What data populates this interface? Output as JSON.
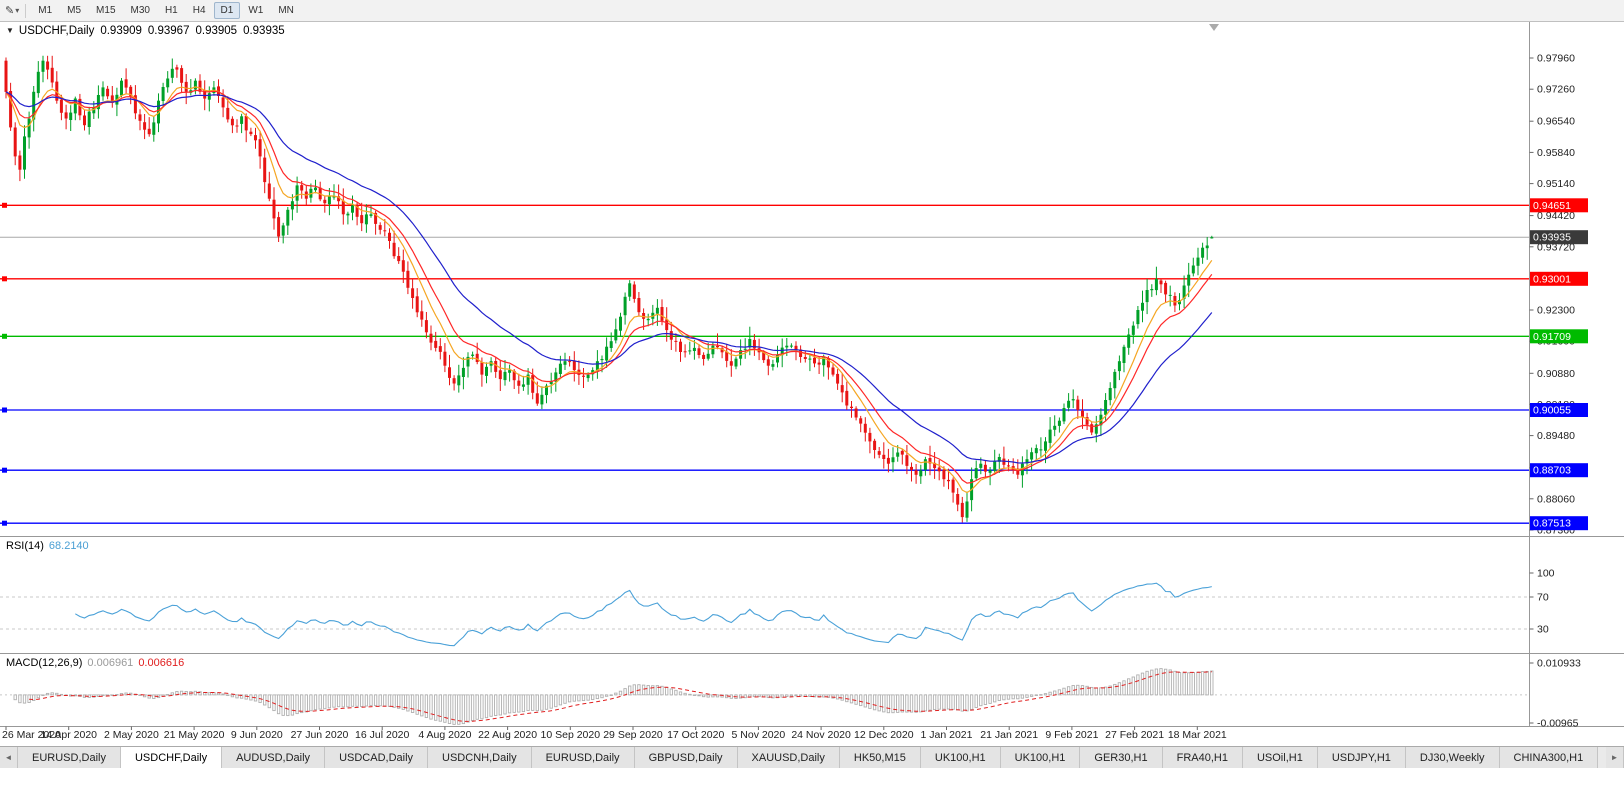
{
  "toolbar": {
    "draw_icon": "✎",
    "caret_icon": "▾",
    "timeframes": [
      "M1",
      "M5",
      "M15",
      "M30",
      "H1",
      "H4",
      "D1",
      "W1",
      "MN"
    ],
    "active_timeframe": "D1"
  },
  "chart_header": {
    "menu_icon": "▼",
    "symbol": "USDCHF,Daily",
    "open": "0.93909",
    "high": "0.93967",
    "low": "0.93905",
    "close": "0.93935"
  },
  "indicators": {
    "rsi": {
      "name": "RSI(14)",
      "value": "68.2140",
      "period": 14,
      "levels": [
        30,
        70
      ],
      "axis_labels": [
        {
          "text": "100",
          "value": 100
        },
        {
          "text": "70",
          "value": 70
        },
        {
          "text": "30",
          "value": 30
        }
      ],
      "color": "#4aa1d8"
    },
    "macd": {
      "name": "MACD(12,26,9)",
      "main_value": "0.006961",
      "signal_value": "0.006616",
      "fast": 12,
      "slow": 26,
      "signal": 9,
      "axis_labels": [
        {
          "text": "0.010933",
          "value": 0.010933
        },
        {
          "text": "-0.00965",
          "value": -0.00965
        }
      ],
      "hist_color": "#b0b0b0",
      "signal_color": "#e02020"
    }
  },
  "chart_data": {
    "type": "candlestick",
    "symbol": "USDCHF",
    "timeframe": "Daily",
    "last_bar": {
      "open": 0.93909,
      "high": 0.93967,
      "low": 0.93905,
      "close": 0.93935
    },
    "candle_count": 262,
    "visible_price_range": [
      0.8722,
      0.9878
    ],
    "up_color": "#00a028",
    "down_color": "#e81414",
    "current_price": {
      "value": 0.93935,
      "label": "0.93935",
      "tag_bg": "#3a3a3a"
    },
    "horizontal_levels": [
      {
        "price": 0.94651,
        "label": "0.94651",
        "color": "#ff0000"
      },
      {
        "price": 0.93001,
        "label": "0.93001",
        "color": "#ff0000"
      },
      {
        "price": 0.91709,
        "label": "0.91709",
        "color": "#00bb00"
      },
      {
        "price": 0.90055,
        "label": "0.90055",
        "color": "#0000ff"
      },
      {
        "price": 0.88703,
        "label": "0.88703",
        "color": "#0000ff"
      },
      {
        "price": 0.87513,
        "label": "0.87513",
        "color": "#0000ff"
      }
    ],
    "moving_averages": [
      {
        "method": "ema",
        "period": 8,
        "color": "#f5a623"
      },
      {
        "method": "ema",
        "period": 13,
        "color": "#ff2828"
      },
      {
        "method": "ema",
        "period": 28,
        "color": "#2020cc"
      }
    ],
    "price_axis_ticks": [
      {
        "text": "0.97960",
        "value": 0.9796
      },
      {
        "text": "0.97260",
        "value": 0.9726
      },
      {
        "text": "0.96540",
        "value": 0.9654
      },
      {
        "text": "0.95840",
        "value": 0.9584
      },
      {
        "text": "0.95140",
        "value": 0.9514
      },
      {
        "text": "0.94420",
        "value": 0.9442
      },
      {
        "text": "0.93720",
        "value": 0.9372
      },
      {
        "text": "0.92300",
        "value": 0.923
      },
      {
        "text": "0.91600",
        "value": 0.916
      },
      {
        "text": "0.90880",
        "value": 0.9088
      },
      {
        "text": "0.90180",
        "value": 0.9018
      },
      {
        "text": "0.89480",
        "value": 0.8948
      },
      {
        "text": "0.88760",
        "value": 0.8876
      },
      {
        "text": "0.88060",
        "value": 0.8806
      },
      {
        "text": "0.87360",
        "value": 0.8736
      }
    ],
    "x_tick_labels": [
      "26 Mar 2020",
      "14 Apr 2020",
      "2 May 2020",
      "21 May 2020",
      "9 Jun 2020",
      "27 Jun 2020",
      "16 Jul 2020",
      "4 Aug 2020",
      "22 Aug 2020",
      "10 Sep 2020",
      "29 Sep 2020",
      "17 Oct 2020",
      "5 Nov 2020",
      "24 Nov 2020",
      "12 Dec 2020",
      "1 Jan 2021",
      "21 Jan 2021",
      "9 Feb 2021",
      "27 Feb 2021",
      "18 Mar 2021"
    ],
    "close_anchors": [
      [
        0,
        0.972
      ],
      [
        1,
        0.964
      ],
      [
        2,
        0.9575
      ],
      [
        3,
        0.9545
      ],
      [
        4,
        0.962
      ],
      [
        5,
        0.966
      ],
      [
        6,
        0.972
      ],
      [
        7,
        0.9765
      ],
      [
        8,
        0.979
      ],
      [
        9,
        0.977
      ],
      [
        11,
        0.97
      ],
      [
        13,
        0.966
      ],
      [
        15,
        0.9705
      ],
      [
        17,
        0.9645
      ],
      [
        19,
        0.9685
      ],
      [
        21,
        0.973
      ],
      [
        23,
        0.9695
      ],
      [
        25,
        0.9745
      ],
      [
        27,
        0.971
      ],
      [
        29,
        0.9655
      ],
      [
        31,
        0.9625
      ],
      [
        33,
        0.97
      ],
      [
        35,
        0.975
      ],
      [
        37,
        0.977
      ],
      [
        39,
        0.972
      ],
      [
        41,
        0.9745
      ],
      [
        43,
        0.9705
      ],
      [
        45,
        0.973
      ],
      [
        47,
        0.9685
      ],
      [
        49,
        0.9645
      ],
      [
        51,
        0.9665
      ],
      [
        53,
        0.9625
      ],
      [
        55,
        0.9575
      ],
      [
        57,
        0.948
      ],
      [
        59,
        0.9395
      ],
      [
        60,
        0.942
      ],
      [
        61,
        0.9455
      ],
      [
        63,
        0.951
      ],
      [
        65,
        0.948
      ],
      [
        67,
        0.9505
      ],
      [
        69,
        0.947
      ],
      [
        71,
        0.9485
      ],
      [
        73,
        0.9445
      ],
      [
        75,
        0.9465
      ],
      [
        77,
        0.9425
      ],
      [
        79,
        0.9445
      ],
      [
        81,
        0.941
      ],
      [
        83,
        0.9385
      ],
      [
        85,
        0.934
      ],
      [
        87,
        0.928
      ],
      [
        89,
        0.9225
      ],
      [
        91,
        0.918
      ],
      [
        93,
        0.9145
      ],
      [
        95,
        0.9105
      ],
      [
        97,
        0.9065
      ],
      [
        99,
        0.91
      ],
      [
        101,
        0.913
      ],
      [
        103,
        0.9085
      ],
      [
        105,
        0.9115
      ],
      [
        107,
        0.9075
      ],
      [
        109,
        0.9095
      ],
      [
        111,
        0.906
      ],
      [
        113,
        0.9085
      ],
      [
        115,
        0.902
      ],
      [
        117,
        0.906
      ],
      [
        119,
        0.909
      ],
      [
        121,
        0.9115
      ],
      [
        123,
        0.9095
      ],
      [
        125,
        0.908
      ],
      [
        127,
        0.9095
      ],
      [
        129,
        0.912
      ],
      [
        131,
        0.916
      ],
      [
        133,
        0.9215
      ],
      [
        135,
        0.929
      ],
      [
        136,
        0.9255
      ],
      [
        137,
        0.9225
      ],
      [
        139,
        0.921
      ],
      [
        141,
        0.9235
      ],
      [
        143,
        0.9185
      ],
      [
        145,
        0.916
      ],
      [
        147,
        0.9135
      ],
      [
        149,
        0.9145
      ],
      [
        151,
        0.912
      ],
      [
        153,
        0.915
      ],
      [
        155,
        0.9135
      ],
      [
        157,
        0.9105
      ],
      [
        159,
        0.914
      ],
      [
        161,
        0.9165
      ],
      [
        163,
        0.9135
      ],
      [
        165,
        0.9105
      ],
      [
        167,
        0.913
      ],
      [
        169,
        0.915
      ],
      [
        171,
        0.914
      ],
      [
        173,
        0.912
      ],
      [
        175,
        0.911
      ],
      [
        177,
        0.9125
      ],
      [
        179,
        0.9085
      ],
      [
        181,
        0.9045
      ],
      [
        183,
        0.901
      ],
      [
        185,
        0.8975
      ],
      [
        187,
        0.8935
      ],
      [
        189,
        0.8905
      ],
      [
        191,
        0.8885
      ],
      [
        193,
        0.891
      ],
      [
        195,
        0.888
      ],
      [
        197,
        0.886
      ],
      [
        199,
        0.8895
      ],
      [
        201,
        0.8875
      ],
      [
        203,
        0.885
      ],
      [
        205,
        0.882
      ],
      [
        207,
        0.8765
      ],
      [
        208,
        0.88
      ],
      [
        209,
        0.885
      ],
      [
        211,
        0.8885
      ],
      [
        213,
        0.887
      ],
      [
        215,
        0.89
      ],
      [
        217,
        0.888
      ],
      [
        219,
        0.886
      ],
      [
        221,
        0.8895
      ],
      [
        223,
        0.892
      ],
      [
        225,
        0.8935
      ],
      [
        227,
        0.897
      ],
      [
        229,
        0.901
      ],
      [
        231,
        0.903
      ],
      [
        233,
        0.899
      ],
      [
        235,
        0.8955
      ],
      [
        237,
        0.8995
      ],
      [
        239,
        0.9055
      ],
      [
        241,
        0.9115
      ],
      [
        243,
        0.9175
      ],
      [
        245,
        0.923
      ],
      [
        247,
        0.9275
      ],
      [
        249,
        0.93
      ],
      [
        251,
        0.9265
      ],
      [
        253,
        0.924
      ],
      [
        255,
        0.9285
      ],
      [
        257,
        0.933
      ],
      [
        259,
        0.937
      ],
      [
        261,
        0.93935
      ]
    ]
  },
  "tabs": {
    "left_arrow": "◄",
    "right_arrow": "►",
    "active_index": 1,
    "items": [
      "EURUSD,Daily",
      "USDCHF,Daily",
      "AUDUSD,Daily",
      "USDCAD,Daily",
      "USDCNH,Daily",
      "EURUSD,Daily",
      "GBPUSD,Daily",
      "XAUUSD,Daily",
      "HK50,M15",
      "UK100,H1",
      "UK100,H1",
      "GER30,H1",
      "FRA40,H1",
      "USOil,H1",
      "USDJPY,H1",
      "DJ30,Weekly",
      "CHINA300,H1"
    ]
  }
}
